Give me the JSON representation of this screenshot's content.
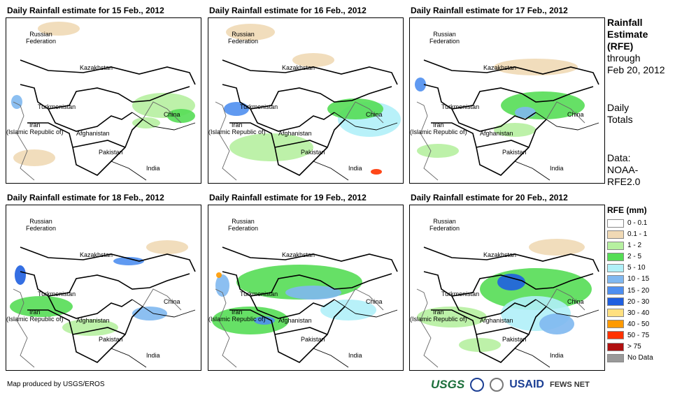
{
  "panels": [
    {
      "title": "Daily Rainfall estimate for 15 Feb., 2012"
    },
    {
      "title": "Daily Rainfall estimate for 16 Feb., 2012"
    },
    {
      "title": "Daily Rainfall estimate for 17 Feb., 2012"
    },
    {
      "title": "Daily Rainfall estimate for 18 Feb., 2012"
    },
    {
      "title": "Daily Rainfall estimate for 19 Feb., 2012"
    },
    {
      "title": "Daily Rainfall estimate for 20 Feb., 2012"
    }
  ],
  "map_labels": {
    "russia": "Russian\nFederation",
    "kazakhstan": "Kazakhstan",
    "turkmenistan": "Turkmenistan",
    "iran": "Iran\n(Islamic Republic of)",
    "afghanistan": "Afghanistan",
    "pakistan": "Pakistan",
    "china": "China",
    "india": "India"
  },
  "side_info": {
    "title_line1": "Rainfall",
    "title_line2": "Estimate",
    "title_line3": "(RFE)",
    "through_line1": "through",
    "through_line2": "Feb 20, 2012",
    "totals_line1": "Daily",
    "totals_line2": "Totals",
    "data_line1": "Data:",
    "data_line2": "NOAA-",
    "data_line3": "RFE2.0"
  },
  "legend": {
    "title": "RFE (mm)",
    "items": [
      {
        "label": "0 - 0.1",
        "color": "#ffffff"
      },
      {
        "label": "0.1 - 1",
        "color": "#f0d9b5"
      },
      {
        "label": "1 - 2",
        "color": "#b6f0a0"
      },
      {
        "label": "2 - 5",
        "color": "#55dd55"
      },
      {
        "label": "5 - 10",
        "color": "#b0f0f8"
      },
      {
        "label": "10 - 15",
        "color": "#80b8f0"
      },
      {
        "label": "15 - 20",
        "color": "#4f8ff0"
      },
      {
        "label": "20 - 30",
        "color": "#1f5fe0"
      },
      {
        "label": "30 - 40",
        "color": "#ffe080"
      },
      {
        "label": "40 - 50",
        "color": "#ff9a00"
      },
      {
        "label": "50 - 75",
        "color": "#ff3300"
      },
      {
        "label": "> 75",
        "color": "#b01010"
      },
      {
        "label": "No Data",
        "color": "#999999"
      }
    ]
  },
  "footer": {
    "credit": "Map produced by USGS/EROS"
  },
  "logos": {
    "usgs": "USGS",
    "usaid": "USAID",
    "fews": "FEWS NET"
  }
}
